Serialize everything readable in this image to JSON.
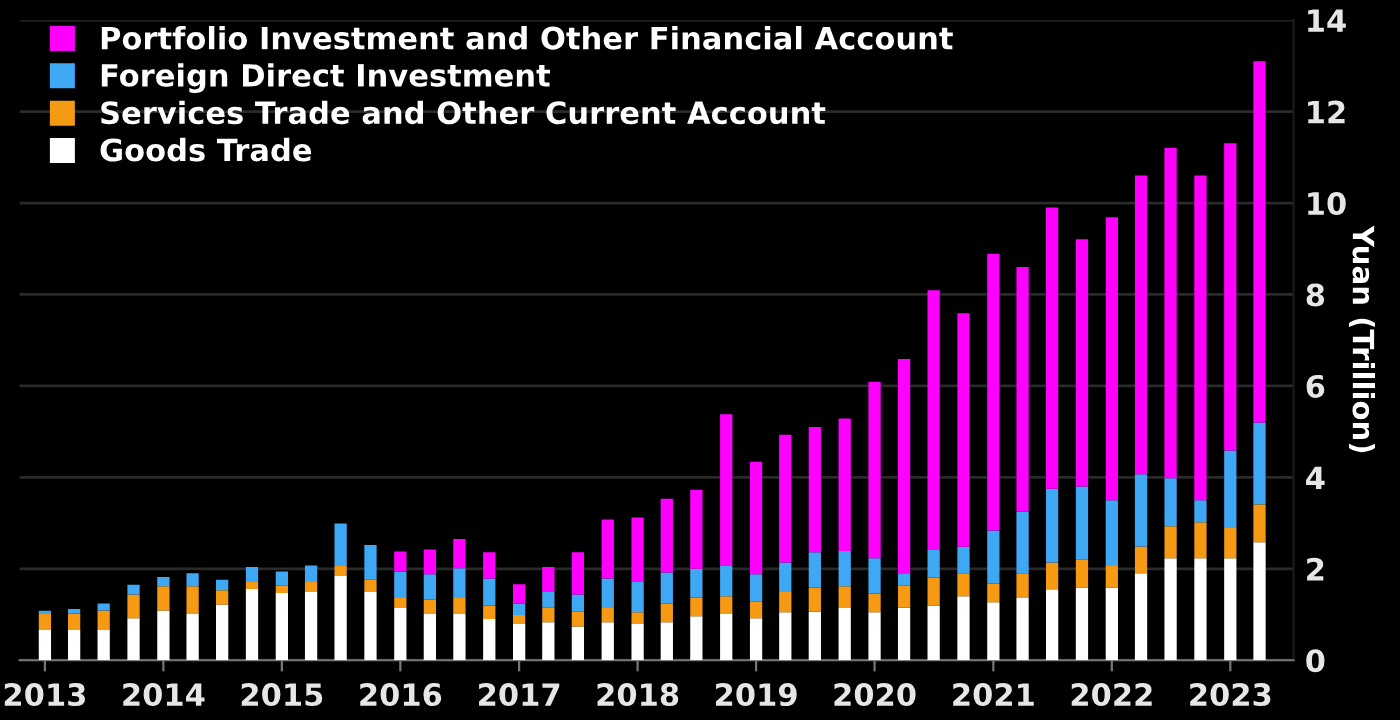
{
  "chart_data": {
    "type": "bar",
    "stacked": true,
    "ylabel": "Yuan (Trillion)",
    "x": [
      "2013-01",
      "2013-04",
      "2013-07",
      "2013-10",
      "2014-01",
      "2014-04",
      "2014-07",
      "2014-10",
      "2015-01",
      "2015-04",
      "2015-07",
      "2015-10",
      "2016-01",
      "2016-04",
      "2016-07",
      "2016-10",
      "2017-01",
      "2017-04",
      "2017-07",
      "2017-10",
      "2018-01",
      "2018-04",
      "2018-07",
      "2018-10",
      "2019-01",
      "2019-04",
      "2019-07",
      "2019-10",
      "2020-01",
      "2020-04",
      "2020-07",
      "2020-10",
      "2021-01",
      "2021-04",
      "2021-07",
      "2021-10",
      "2022-01",
      "2022-04",
      "2022-07",
      "2022-10",
      "2023-01",
      "2023-04"
    ],
    "series": [
      {
        "name": "Goods Trade",
        "color": "#ffffff",
        "values": [
          0.66,
          0.66,
          0.66,
          0.92,
          1.09,
          1.01,
          1.22,
          1.56,
          1.47,
          1.49,
          1.84,
          1.49,
          1.14,
          1.01,
          1.01,
          0.9,
          0.79,
          0.83,
          0.74,
          0.83,
          0.79,
          0.83,
          0.96,
          1.01,
          0.92,
          1.05,
          1.06,
          1.14,
          1.05,
          1.15,
          1.2,
          1.4,
          1.27,
          1.36,
          1.55,
          1.59,
          1.59,
          1.9,
          2.23,
          2.23,
          2.23,
          2.58
        ]
      },
      {
        "name": "Services Trade and Other Current Account",
        "color": "#f59a12",
        "values": [
          0.35,
          0.36,
          0.43,
          0.52,
          0.53,
          0.61,
          0.31,
          0.15,
          0.16,
          0.22,
          0.22,
          0.27,
          0.22,
          0.32,
          0.35,
          0.3,
          0.2,
          0.32,
          0.32,
          0.31,
          0.26,
          0.41,
          0.41,
          0.39,
          0.36,
          0.44,
          0.53,
          0.48,
          0.41,
          0.48,
          0.61,
          0.5,
          0.41,
          0.54,
          0.59,
          0.61,
          0.47,
          0.59,
          0.7,
          0.79,
          0.66,
          0.83
        ]
      },
      {
        "name": "Foreign Direct Investment",
        "color": "#3fa8f4",
        "values": [
          0.07,
          0.1,
          0.15,
          0.21,
          0.2,
          0.28,
          0.23,
          0.33,
          0.31,
          0.36,
          0.93,
          0.76,
          0.58,
          0.55,
          0.65,
          0.59,
          0.25,
          0.34,
          0.38,
          0.65,
          0.66,
          0.68,
          0.63,
          0.66,
          0.6,
          0.65,
          0.77,
          0.77,
          0.77,
          0.27,
          0.6,
          0.58,
          1.16,
          1.35,
          1.61,
          1.6,
          1.44,
          1.58,
          1.05,
          0.48,
          1.7,
          1.79
        ]
      },
      {
        "name": "Portfolio Investment and Other Financial Account",
        "color": "#ff00ff",
        "values": [
          null,
          null,
          null,
          null,
          null,
          null,
          null,
          null,
          null,
          null,
          null,
          null,
          0.44,
          0.54,
          0.64,
          0.57,
          0.42,
          0.55,
          0.92,
          1.29,
          1.41,
          1.61,
          1.73,
          3.32,
          2.46,
          2.79,
          2.74,
          2.9,
          3.86,
          4.69,
          5.68,
          5.11,
          6.05,
          5.35,
          6.15,
          5.41,
          6.19,
          6.53,
          7.23,
          7.1,
          6.72,
          7.9
        ]
      }
    ],
    "xlim": [
      "2012-10-15",
      "2023-07-15"
    ],
    "xticks": [
      "2013",
      "2014",
      "2015",
      "2016",
      "2017",
      "2018",
      "2019",
      "2020",
      "2021",
      "2022",
      "2023"
    ],
    "ylim": [
      0,
      14
    ],
    "yticks": [
      0,
      2,
      4,
      6,
      8,
      10,
      12,
      14
    ],
    "grid": "y",
    "legend": "top left"
  }
}
